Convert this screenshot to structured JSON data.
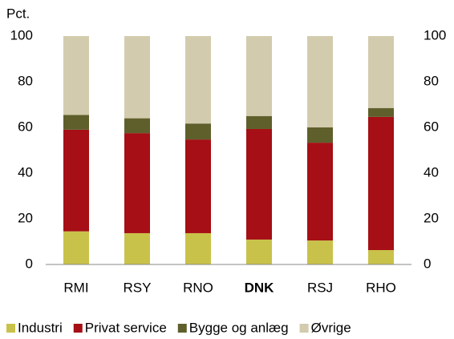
{
  "chart_data": {
    "type": "stacked_bar",
    "y_label": "Pct.",
    "categories": [
      "RMI",
      "RSY",
      "RNO",
      "DNK",
      "RSJ",
      "RHO"
    ],
    "highlight": "DNK",
    "series": [
      {
        "name": "Industri",
        "color": "#c9c24a",
        "values": [
          14.5,
          13.7,
          13.7,
          10.9,
          10.5,
          6.3
        ]
      },
      {
        "name": "Privat service",
        "color": "#a50f15",
        "values": [
          44.5,
          43.8,
          41.0,
          48.4,
          42.8,
          58.3
        ]
      },
      {
        "name": "Bygge og anlæg",
        "color": "#5f5f2c",
        "values": [
          6.5,
          6.5,
          7.0,
          5.7,
          6.7,
          3.9
        ]
      },
      {
        "name": "Øvrige",
        "color": "#d2cbae",
        "values": [
          34.5,
          36.0,
          38.3,
          35.0,
          40.0,
          31.5
        ]
      }
    ],
    "ylim": [
      0,
      100
    ],
    "yticks": [
      0,
      20,
      40,
      60,
      80,
      100
    ],
    "y2lim": [
      0,
      100
    ],
    "y2ticks": [
      0,
      20,
      40,
      60,
      80,
      100
    ],
    "legend": "bottom"
  }
}
